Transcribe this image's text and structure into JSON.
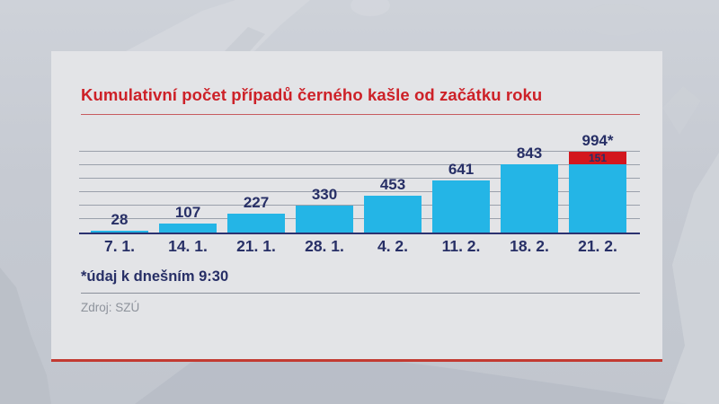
{
  "card": {
    "title": "Kumulativní počet případů černého kašle od začátku roku",
    "footnote": "*údaj k dnešním 9:30",
    "source": "Zdroj: SZÚ"
  },
  "chart_data": {
    "type": "bar",
    "title": "Kumulativní počet případů černého kašle od začátku roku",
    "categories": [
      "7. 1.",
      "14. 1.",
      "21. 1.",
      "28. 1.",
      "4. 2.",
      "11. 2.",
      "18. 2.",
      "21. 2."
    ],
    "values": [
      28,
      107,
      227,
      330,
      453,
      641,
      843,
      994
    ],
    "value_labels": [
      "28",
      "107",
      "227",
      "330",
      "453",
      "641",
      "843",
      "994*"
    ],
    "last_bar_breakdown": {
      "previous_total": 843,
      "new_cases": 151,
      "new_cases_label": "151",
      "total_label": "994*"
    },
    "footnote": "*údaj k dnešním 9:30",
    "source": "Zdroj: SZÚ",
    "xlabel": "",
    "ylabel": "",
    "ylim": [
      0,
      994
    ],
    "gridlines": 6,
    "legend": false,
    "colors": {
      "bar": "#24b5e6",
      "increment": "#d3161d",
      "value_label": "#272f66",
      "axis_line": "#2b3270",
      "gridline": "#9aa0ab"
    }
  },
  "theme": {
    "card_background": "#e3e4e7",
    "card_bottom_border": "#c23a31",
    "title_color": "#cd2128",
    "title_rule": "#c75b60",
    "footnote_color": "#272f66",
    "foot_rule": "#8a8f9a",
    "source_color": "#8d929b",
    "background_sea": "#c6cad2",
    "background_land_light": "#d4d7dd",
    "background_land_dark": "#b8bdc6"
  }
}
